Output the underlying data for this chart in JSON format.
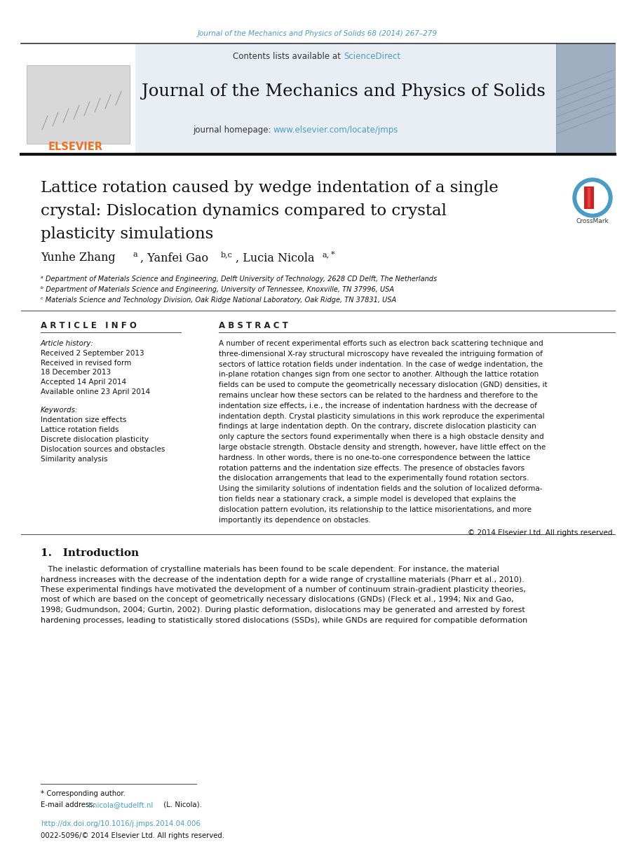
{
  "page_bg": "#ffffff",
  "top_journal_text": "Journal of the Mechanics and Physics of Solids 68 (2014) 267–279",
  "top_journal_color": "#4a9cc7",
  "header_bg": "#e8eef4",
  "header_contents_text": "Contents lists available at ",
  "header_sciencedirect": "ScienceDirect",
  "header_sciencedirect_color": "#4a9cc7",
  "journal_title": "Journal of the Mechanics and Physics of Solids",
  "journal_homepage_text": "journal homepage: ",
  "journal_homepage_url": "www.elsevier.com/locate/jmps",
  "journal_homepage_url_color": "#4a9cc7",
  "elsevier_color": "#f07020",
  "paper_title_line1": "Lattice rotation caused by wedge indentation of a single",
  "paper_title_line2": "crystal: Dislocation dynamics compared to crystal",
  "paper_title_line3": "plasticity simulations",
  "affil_a": "ᵃ Department of Materials Science and Engineering, Delft University of Technology, 2628 CD Delft, The Netherlands",
  "affil_b": "ᵇ Department of Materials Science and Engineering, University of Tennessee, Knoxville, TN 37996, USA",
  "affil_c": "ᶜ Materials Science and Technology Division, Oak Ridge National Laboratory, Oak Ridge, TN 37831, USA",
  "article_info_title": "A R T I C L E   I N F O",
  "article_history_title": "Article history:",
  "received": "Received 2 September 2013",
  "revised": "Received in revised form",
  "revised_date": "18 December 2013",
  "accepted": "Accepted 14 April 2014",
  "online": "Available online 23 April 2014",
  "keywords_title": "Keywords:",
  "keyword1": "Indentation size effects",
  "keyword2": "Lattice rotation fields",
  "keyword3": "Discrete dislocation plasticity",
  "keyword4": "Dislocation sources and obstacles",
  "keyword5": "Similarity analysis",
  "abstract_title": "A B S T R A C T",
  "copyright_text": "© 2014 Elsevier Ltd. All rights reserved.",
  "intro_title": "1.   Introduction",
  "footnote_corresponding": "* Corresponding author.",
  "footnote_email_label": "E-mail address: ",
  "footnote_email": "l.nicola@tudelft.nl",
  "footnote_email_color": "#4a9cc7",
  "footnote_email_end": " (L. Nicola).",
  "footnote_doi": "http://dx.doi.org/10.1016/j.jmps.2014.04.006",
  "footnote_doi_color": "#4a9cc7",
  "footnote_issn": "0022-5096/© 2014 Elsevier Ltd. All rights reserved."
}
